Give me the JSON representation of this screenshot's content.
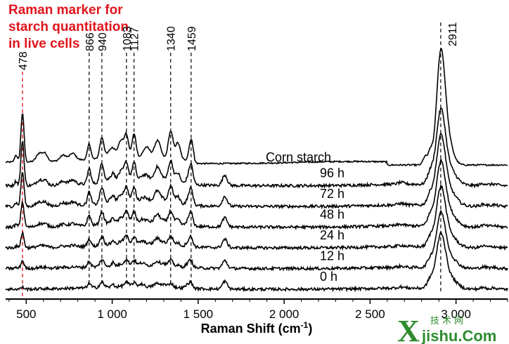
{
  "chart_data": {
    "type": "line",
    "title": "",
    "annotation": [
      "Raman marker for",
      "starch quantitation",
      "in live cells"
    ],
    "xlabel_main": "Raman Shift (cm",
    "xlabel_sup": "-1",
    "xlabel_close": ")",
    "ylabel": "",
    "xlim": [
      380,
      3300
    ],
    "x_ticks": [
      {
        "value": 500,
        "label": "500"
      },
      {
        "value": 1000,
        "label": "1 000"
      },
      {
        "value": 1500,
        "label": "1 500"
      },
      {
        "value": 2000,
        "label": "2 000"
      },
      {
        "value": 2500,
        "label": "2 500"
      },
      {
        "value": 3000,
        "label": "3 000"
      }
    ],
    "marker_line": {
      "x": 478,
      "label": "478",
      "color": "#e0141c"
    },
    "peak_lines": [
      {
        "x": 866,
        "label": "866"
      },
      {
        "x": 940,
        "label": "940"
      },
      {
        "x": 1083,
        "label": "1083"
      },
      {
        "x": 1127,
        "label": "1127"
      },
      {
        "x": 1340,
        "label": "1340"
      },
      {
        "x": 1459,
        "label": "1459"
      },
      {
        "x": 2911,
        "label": "2911"
      }
    ],
    "series": [
      {
        "name": "Corn starch",
        "baseline": 0,
        "amp": 1.0,
        "starch": 1.0,
        "lipid": 0.0
      },
      {
        "name": "96 h",
        "baseline": 1,
        "amp": 0.75,
        "starch": 0.85,
        "lipid": 1.0
      },
      {
        "name": "72 h",
        "baseline": 2,
        "amp": 0.7,
        "starch": 0.7,
        "lipid": 1.0
      },
      {
        "name": "48 h",
        "baseline": 3,
        "amp": 0.65,
        "starch": 0.55,
        "lipid": 1.0
      },
      {
        "name": "24 h",
        "baseline": 4,
        "amp": 0.6,
        "starch": 0.35,
        "lipid": 1.0
      },
      {
        "name": "12 h",
        "baseline": 5,
        "amp": 0.55,
        "starch": 0.2,
        "lipid": 1.0
      },
      {
        "name": "0 h",
        "baseline": 6,
        "amp": 0.55,
        "starch": 0.05,
        "lipid": 1.0
      }
    ]
  },
  "watermark": {
    "big": "X",
    "small": "jishu.Com",
    "cn": "技术网"
  }
}
